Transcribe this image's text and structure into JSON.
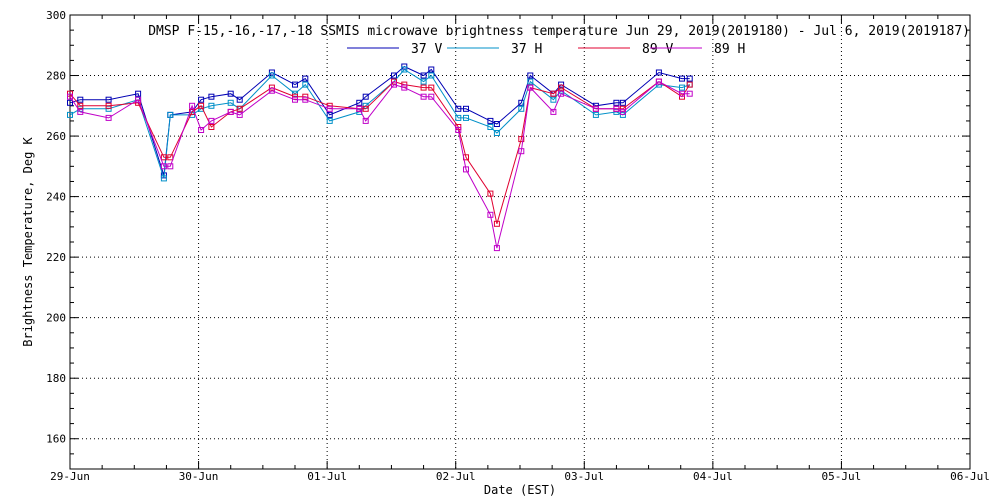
{
  "chart_data": {
    "type": "line",
    "title": "DMSP F-15,-16,-17,-18 SSMIS microwave brightness temperature Jun 29, 2019(2019180) - Jul  6, 2019(2019187)",
    "xlabel": "Date (EST)",
    "ylabel": "Brightness Temperature, Deg K",
    "xlim": [
      0,
      7
    ],
    "ylim": [
      150,
      300
    ],
    "grid": true,
    "legend_position": "top-right",
    "x_ticks": [
      {
        "value": 0,
        "label": "29-Jun"
      },
      {
        "value": 1,
        "label": "30-Jun"
      },
      {
        "value": 2,
        "label": "01-Jul"
      },
      {
        "value": 3,
        "label": "02-Jul"
      },
      {
        "value": 4,
        "label": "03-Jul"
      },
      {
        "value": 5,
        "label": "04-Jul"
      },
      {
        "value": 6,
        "label": "05-Jul"
      },
      {
        "value": 7,
        "label": "06-Jul"
      }
    ],
    "y_ticks": [
      {
        "value": 160,
        "label": "160"
      },
      {
        "value": 180,
        "label": "180"
      },
      {
        "value": 200,
        "label": "200"
      },
      {
        "value": 220,
        "label": "220"
      },
      {
        "value": 240,
        "label": "240"
      },
      {
        "value": 260,
        "label": "260"
      },
      {
        "value": 280,
        "label": "280"
      },
      {
        "value": 300,
        "label": "300"
      }
    ],
    "x": [
      0.0,
      0.08,
      0.3,
      0.53,
      0.73,
      0.78,
      0.95,
      1.02,
      1.1,
      1.25,
      1.32,
      1.57,
      1.75,
      1.83,
      2.02,
      2.25,
      2.3,
      2.52,
      2.6,
      2.75,
      2.81,
      3.02,
      3.08,
      3.27,
      3.32,
      3.51,
      3.58,
      3.76,
      3.82,
      4.09,
      4.25,
      4.3,
      4.58,
      4.76,
      4.82
    ],
    "series": [
      {
        "name": "37 V",
        "color": "#0000b4",
        "values": [
          271,
          272,
          272,
          274,
          247,
          267,
          268,
          272,
          273,
          274,
          272,
          281,
          277,
          279,
          267,
          271,
          273,
          280,
          283,
          280,
          282,
          269,
          269,
          265,
          264,
          271,
          280,
          274,
          277,
          270,
          271,
          271,
          281,
          279,
          279
        ]
      },
      {
        "name": "37 H",
        "color": "#0090c8",
        "values": [
          267,
          269,
          269,
          272,
          246,
          267,
          267,
          269,
          270,
          271,
          269,
          280,
          274,
          277,
          265,
          268,
          270,
          278,
          282,
          278,
          280,
          266,
          266,
          263,
          261,
          269,
          278,
          272,
          275,
          267,
          268,
          267,
          277,
          276,
          277
        ]
      },
      {
        "name": "89 V",
        "color": "#e00030",
        "values": [
          274,
          270,
          270,
          271,
          253,
          253,
          268,
          270,
          263,
          268,
          269,
          276,
          273,
          273,
          270,
          269,
          269,
          278,
          277,
          276,
          276,
          263,
          253,
          241,
          231,
          259,
          276,
          274,
          276,
          269,
          269,
          269,
          278,
          273,
          277
        ]
      },
      {
        "name": "89 H",
        "color": "#c000c8",
        "values": [
          273,
          268,
          266,
          272,
          250,
          250,
          270,
          262,
          265,
          268,
          267,
          275,
          272,
          272,
          269,
          269,
          265,
          277,
          276,
          273,
          273,
          262,
          249,
          234,
          223,
          255,
          276,
          268,
          274,
          269,
          269,
          268,
          278,
          274,
          274
        ]
      }
    ]
  }
}
